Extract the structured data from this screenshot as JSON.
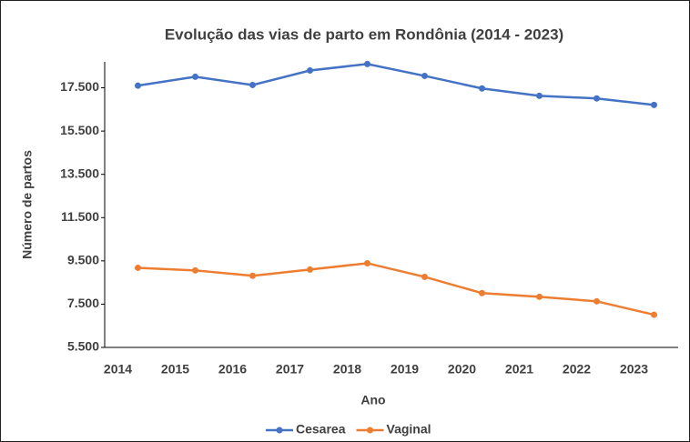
{
  "chart_data": {
    "type": "line",
    "title": "Evolução das vias de parto em Rondônia (2014 - 2023)",
    "xlabel": "Ano",
    "ylabel": "Número de partos",
    "categories": [
      "2014",
      "2015",
      "2016",
      "2017",
      "2018",
      "2019",
      "2020",
      "2021",
      "2022",
      "2023"
    ],
    "series": [
      {
        "name": "Cesarea",
        "color": "#4472c4",
        "values": [
          17600,
          18010,
          17630,
          18300,
          18600,
          18050,
          17470,
          17130,
          17010,
          16710
        ]
      },
      {
        "name": "Vaginal",
        "color": "#ed7d31",
        "values": [
          9180,
          9060,
          8810,
          9100,
          9390,
          8760,
          8010,
          7840,
          7630,
          7010
        ]
      }
    ],
    "ylim": [
      5500,
      18700
    ],
    "yticks": [
      {
        "value": 5500,
        "label": "5.500"
      },
      {
        "value": 7500,
        "label": "7.500"
      },
      {
        "value": 9500,
        "label": "9.500"
      },
      {
        "value": 11500,
        "label": "11.500"
      },
      {
        "value": 13500,
        "label": "13.500"
      },
      {
        "value": 15500,
        "label": "15.500"
      },
      {
        "value": 17500,
        "label": "17.500"
      }
    ],
    "legend": "bottom",
    "grid": false
  }
}
